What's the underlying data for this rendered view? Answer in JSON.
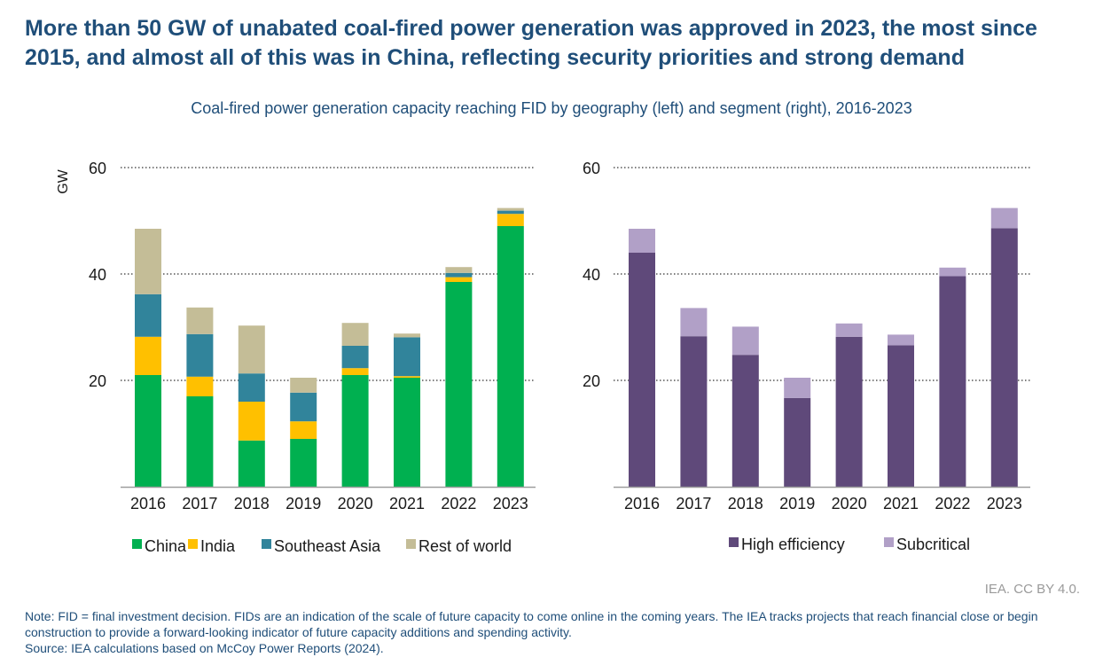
{
  "title": "More than 50 GW of unabated coal-fired power generation was approved in 2023, the most since 2015, and almost all of this was in China, reflecting security priorities and strong demand",
  "subtitle": "Coal-fired power generation capacity reaching FID by geography (left) and segment (right), 2016-2023",
  "credit": "IEA. CC BY 4.0.",
  "note": "Note: FID = final investment decision. FIDs are an indication of the scale of future capacity to come online in the coming years. The IEA tracks projects that reach financial close or begin construction to provide a forward-looking indicator of future capacity additions and spending activity.",
  "source": "Source: IEA calculations based on McCoy Power Reports (2024).",
  "chart_data": [
    {
      "type": "bar",
      "stacked": true,
      "ylabel": "GW",
      "ylim": [
        0,
        60
      ],
      "yticks": [
        20,
        40,
        60
      ],
      "grid": true,
      "legend_position": "bottom",
      "categories": [
        "2016",
        "2017",
        "2018",
        "2019",
        "2020",
        "2021",
        "2022",
        "2023"
      ],
      "series": [
        {
          "name": "China",
          "color": "#00b050",
          "values": [
            21,
            17,
            8.7,
            9,
            21,
            20.5,
            38.5,
            49
          ]
        },
        {
          "name": "India",
          "color": "#ffc000",
          "values": [
            7.2,
            3.7,
            7.3,
            3.3,
            1.3,
            0.3,
            0.9,
            2.3
          ]
        },
        {
          "name": "Southeast Asia",
          "color": "#31849b",
          "values": [
            8,
            8,
            5.3,
            5.4,
            4.2,
            7.3,
            0.8,
            0.6
          ]
        },
        {
          "name": "Rest of world",
          "color": "#c4bd97",
          "values": [
            12.3,
            5,
            9,
            2.8,
            4.3,
            0.7,
            1.1,
            0.5
          ]
        }
      ]
    },
    {
      "type": "bar",
      "stacked": true,
      "ylim": [
        0,
        60
      ],
      "yticks": [
        20,
        40,
        60
      ],
      "grid": true,
      "legend_position": "bottom",
      "categories": [
        "2016",
        "2017",
        "2018",
        "2019",
        "2020",
        "2021",
        "2022",
        "2023"
      ],
      "series": [
        {
          "name": "High efficiency",
          "color": "#5f497a",
          "values": [
            44,
            28.3,
            24.8,
            16.7,
            28.2,
            26.6,
            39.6,
            48.6
          ]
        },
        {
          "name": "Subcritical",
          "color": "#b1a0c7",
          "values": [
            4.5,
            5.3,
            5.3,
            3.8,
            2.5,
            2,
            1.6,
            3.8
          ]
        }
      ]
    }
  ]
}
